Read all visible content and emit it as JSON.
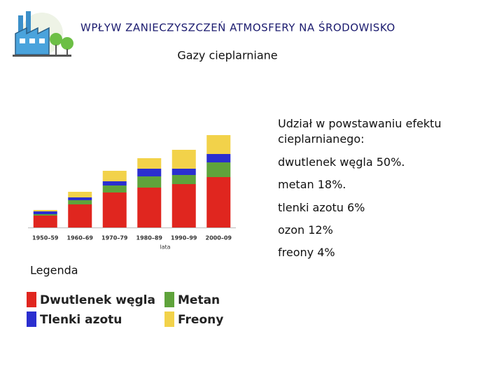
{
  "header": {
    "title": "WPŁYW ZANIECZYSZCZEŃ ATMOSFERY NA ŚRODOWISKO",
    "subtitle": "Gazy cieplarniane"
  },
  "chart_data": {
    "type": "bar",
    "stacked": true,
    "categories": [
      "1950–59",
      "1960–69",
      "1970–79",
      "1980–89",
      "1990–99",
      "2000–09"
    ],
    "x_label": "lata",
    "legend_title": "Legenda",
    "series": [
      {
        "name": "Dwutlenek węgla",
        "color": "#e0261f",
        "values": [
          17,
          33,
          50,
          57,
          62,
          72
        ]
      },
      {
        "name": "Metan",
        "color": "#5fa33b",
        "values": [
          2,
          6,
          10,
          16,
          13,
          21
        ]
      },
      {
        "name": "Tlenki azotu",
        "color": "#2b2fcf",
        "values": [
          4,
          4,
          6,
          11,
          9,
          12
        ]
      },
      {
        "name": "Freony",
        "color": "#f2d24a",
        "values": [
          2,
          8,
          15,
          15,
          27,
          27
        ]
      }
    ]
  },
  "text": [
    "Udział w powstawaniu efektu cieplarnianego:",
    "dwutlenek węgla 50%.",
    "metan 18%.",
    "tlenki azotu 6%",
    "ozon 12%",
    "freony 4%"
  ]
}
